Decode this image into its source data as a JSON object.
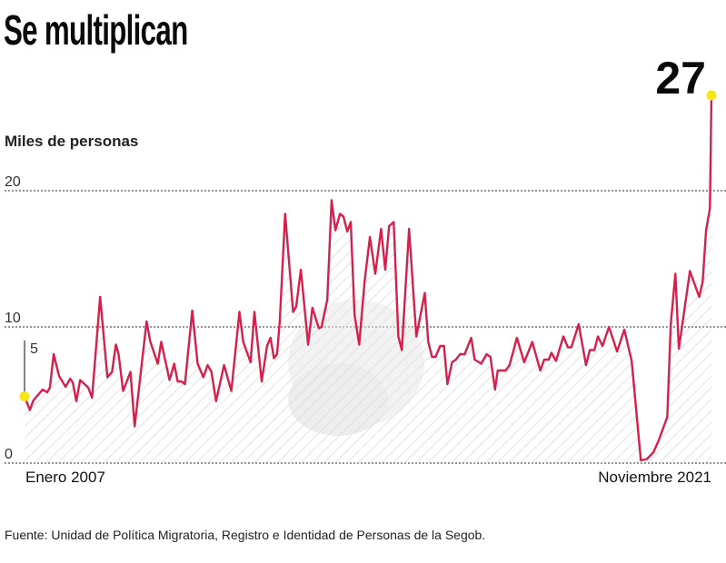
{
  "chart_data": {
    "type": "line",
    "title": "Se multiplican",
    "ylabel": "Miles de personas",
    "xlabel": "",
    "ylim": [
      0,
      27
    ],
    "yticks": [
      "0",
      "10",
      "20"
    ],
    "start_label": "Enero 2007",
    "end_label": "Noviembre 2021",
    "start_marker_label": "5",
    "end_value_label": "27",
    "x_unit": "months since Jan 2007",
    "series": [
      {
        "name": "Miles de personas",
        "points": [
          [
            0,
            4.9
          ],
          [
            1.4,
            3.9
          ],
          [
            2.3,
            4.6
          ],
          [
            4.7,
            5.4
          ],
          [
            5.9,
            5.2
          ],
          [
            6.6,
            5.55
          ],
          [
            7.6,
            8.0
          ],
          [
            9,
            6.4
          ],
          [
            10.7,
            5.6
          ],
          [
            11.9,
            6.2
          ],
          [
            12.6,
            5.9
          ],
          [
            13.5,
            4.55
          ],
          [
            14.5,
            6.1
          ],
          [
            16.6,
            5.55
          ],
          [
            17.6,
            4.8
          ],
          [
            19.7,
            12.2
          ],
          [
            21.6,
            6.3
          ],
          [
            22.8,
            6.7
          ],
          [
            23.8,
            8.7
          ],
          [
            24.5,
            8.0
          ],
          [
            25.7,
            5.3
          ],
          [
            27.6,
            6.7
          ],
          [
            28.7,
            2.7
          ],
          [
            31.8,
            10.4
          ],
          [
            32.8,
            8.9
          ],
          [
            34.7,
            7.3
          ],
          [
            35.6,
            8.9
          ],
          [
            37.8,
            6.1
          ],
          [
            39,
            7.3
          ],
          [
            39.9,
            6.0
          ],
          [
            40.9,
            6.0
          ],
          [
            41.8,
            5.8
          ],
          [
            43.7,
            11.2
          ],
          [
            45.1,
            7.3
          ],
          [
            46.6,
            6.3
          ],
          [
            47.7,
            7.2
          ],
          [
            48.7,
            6.7
          ],
          [
            49.9,
            4.55
          ],
          [
            52,
            7.2
          ],
          [
            53.9,
            5.3
          ],
          [
            56,
            11.1
          ],
          [
            57,
            8.9
          ],
          [
            58.9,
            7.4
          ],
          [
            59.9,
            11.1
          ],
          [
            61.8,
            6.0
          ],
          [
            63.2,
            8.6
          ],
          [
            64.1,
            9.2
          ],
          [
            65,
            7.7
          ],
          [
            65.8,
            8.0
          ],
          [
            66.5,
            10.4
          ],
          [
            67.9,
            18.3
          ],
          [
            70,
            11.1
          ],
          [
            70.8,
            11.5
          ],
          [
            72,
            14.2
          ],
          [
            73.9,
            8.7
          ],
          [
            75,
            11.4
          ],
          [
            76.7,
            9.9
          ],
          [
            77.4,
            10.0
          ],
          [
            78.9,
            12.0
          ],
          [
            80,
            19.3
          ],
          [
            81,
            17.1
          ],
          [
            82.2,
            18.3
          ],
          [
            83.1,
            18.1
          ],
          [
            84.1,
            17.0
          ],
          [
            85,
            17.7
          ],
          [
            86,
            10.9
          ],
          [
            87.2,
            8.7
          ],
          [
            88.6,
            13.3
          ],
          [
            90,
            16.6
          ],
          [
            91.4,
            13.9
          ],
          [
            92.9,
            17.2
          ],
          [
            94,
            14.2
          ],
          [
            95,
            17.4
          ],
          [
            96.2,
            17.7
          ],
          [
            97.4,
            9.3
          ],
          [
            98.3,
            8.3
          ],
          [
            100.2,
            17.2
          ],
          [
            102.1,
            9.3
          ],
          [
            104.3,
            12.5
          ],
          [
            105.2,
            8.9
          ],
          [
            106.2,
            7.8
          ],
          [
            107.1,
            7.8
          ],
          [
            108.3,
            8.6
          ],
          [
            109.3,
            8.6
          ],
          [
            110.2,
            5.8
          ],
          [
            111.4,
            7.4
          ],
          [
            112.4,
            7.6
          ],
          [
            113.5,
            8.0
          ],
          [
            114.7,
            8.0
          ],
          [
            116.4,
            9.2
          ],
          [
            117.3,
            7.6
          ],
          [
            119,
            7.3
          ],
          [
            120.4,
            8.0
          ],
          [
            121.4,
            7.8
          ],
          [
            122.6,
            5.4
          ],
          [
            123.3,
            6.8
          ],
          [
            125.4,
            6.8
          ],
          [
            126.4,
            7.2
          ],
          [
            128.3,
            9.2
          ],
          [
            130.2,
            7.4
          ],
          [
            132.3,
            8.9
          ],
          [
            134.4,
            6.8
          ],
          [
            135.4,
            7.6
          ],
          [
            136.6,
            7.6
          ],
          [
            137.3,
            8.1
          ],
          [
            138.5,
            7.5
          ],
          [
            140.4,
            9.3
          ],
          [
            141.6,
            8.5
          ],
          [
            142.5,
            8.5
          ],
          [
            144.4,
            10.2
          ],
          [
            146.3,
            7.2
          ],
          [
            147.3,
            8.3
          ],
          [
            148.5,
            8.3
          ],
          [
            149.4,
            9.3
          ],
          [
            150.6,
            8.6
          ],
          [
            152.3,
            10.0
          ],
          [
            154.4,
            8.2
          ],
          [
            156.3,
            9.8
          ],
          [
            158.2,
            7.5
          ],
          [
            160.6,
            0.2
          ],
          [
            162.2,
            0.3
          ],
          [
            163.9,
            0.8
          ],
          [
            165.3,
            1.7
          ],
          [
            167.5,
            3.4
          ],
          [
            168.4,
            10.2
          ],
          [
            169.6,
            13.9
          ],
          [
            170.5,
            8.4
          ],
          [
            173.4,
            14.1
          ],
          [
            175.8,
            12.2
          ],
          [
            176.7,
            13.3
          ],
          [
            177.6,
            17.1
          ],
          [
            178.6,
            18.7
          ],
          [
            179,
            27
          ]
        ]
      }
    ],
    "grid": true,
    "colors": {
      "line": "#d81e4a",
      "marker": "#f5e61a",
      "grid": "#555555",
      "hatch": "#c8c8c8"
    }
  },
  "source": "Fuente: Unidad de Política Migratoria, Registro e Identidad de Personas de la Segob."
}
